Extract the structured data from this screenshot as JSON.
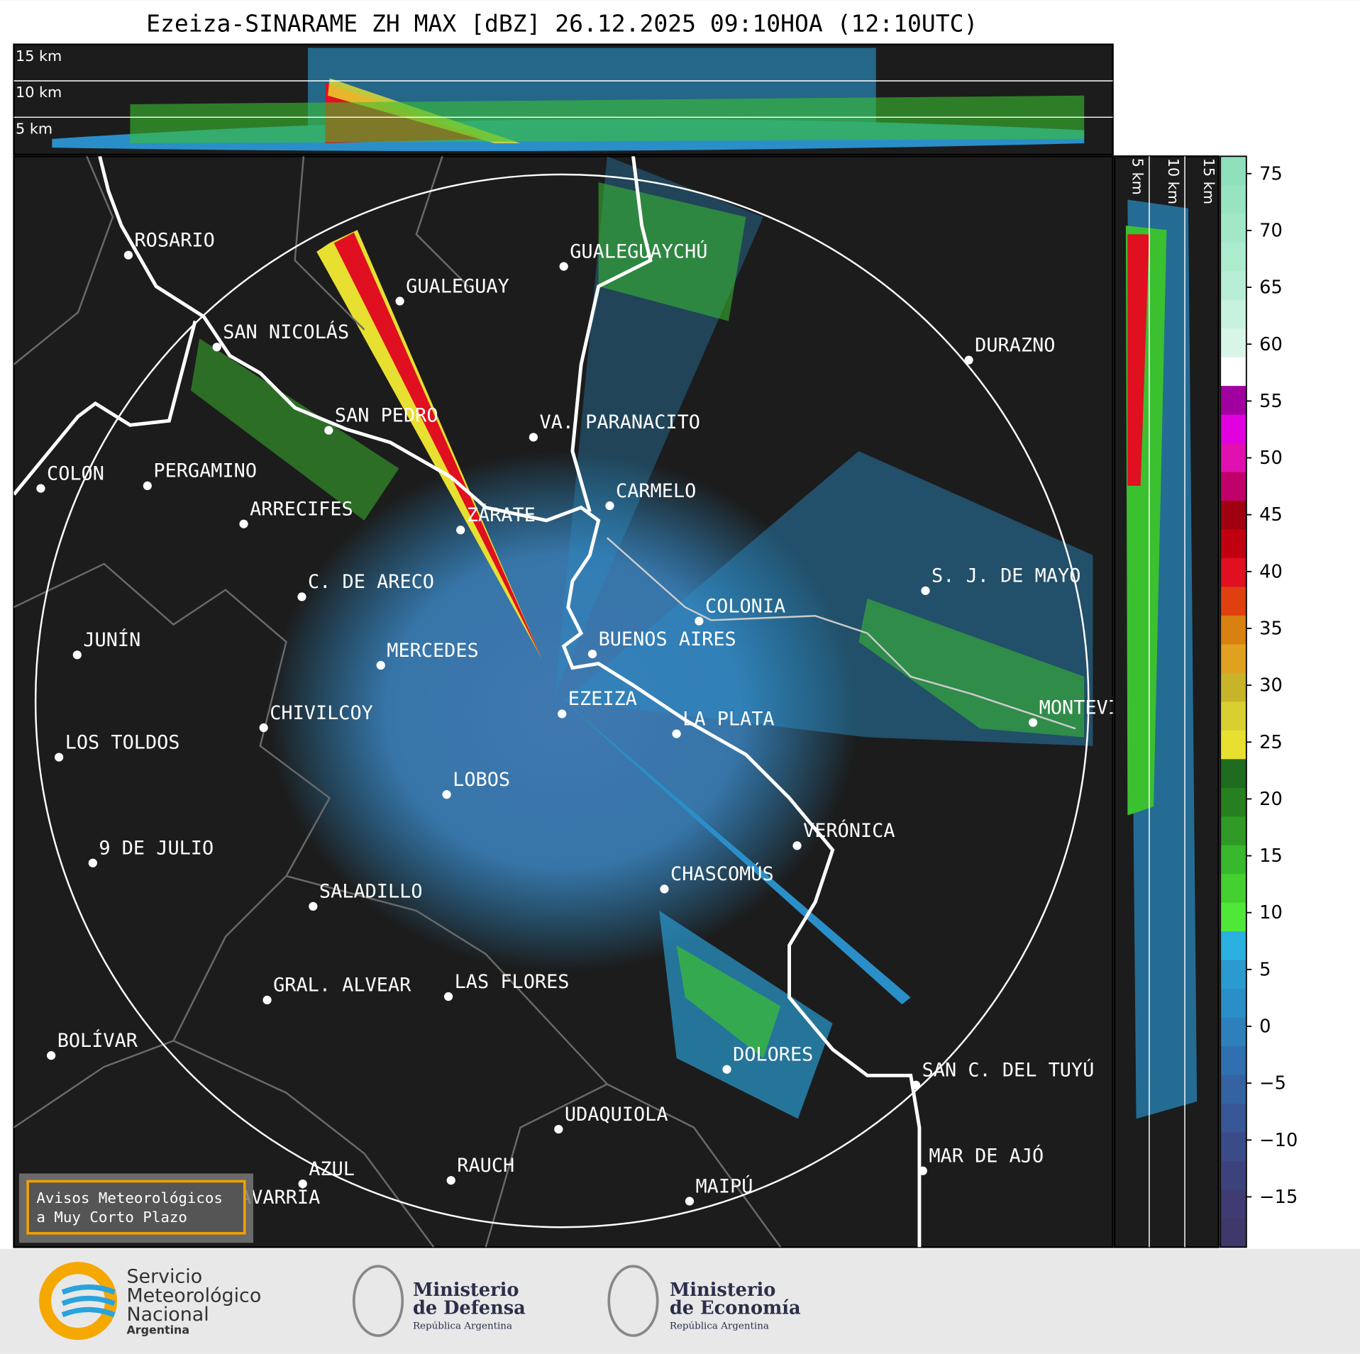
{
  "header": {
    "title": "Ezeiza-SINARAME ZH MAX [dBZ] 26.12.2025 09:10HOA (12:10UTC)"
  },
  "height_panel_top": {
    "labels": [
      "15 km",
      "10 km",
      "5 km"
    ]
  },
  "height_panel_right": {
    "labels": [
      "5 km",
      "10 km",
      "15 km"
    ]
  },
  "cities": [
    "ROSARIO",
    "GUALEGUAYCHÚ",
    "GUALEGUAY",
    "SAN NICOLÁS",
    "DURAZNO",
    "SAN PEDRO",
    "VA. PARANACITO",
    "COLON",
    "PERGAMINO",
    "CARMELO",
    "ARRECIFES",
    "ZÁRATE",
    "S. J. DE MAYO",
    "C. DE ARECO",
    "COLONIA",
    "BUENOS AIRES",
    "JUNÍN",
    "MERCEDES",
    "EZEIZA",
    "MONTEVIDEO",
    "CHIVILCOY",
    "LA PLATA",
    "LOS TOLDOS",
    "LOBOS",
    "VERÓNICA",
    "9 DE JULIO",
    "CHASCOMÚS",
    "SALADILLO",
    "GRAL. ALVEAR",
    "LAS FLORES",
    "BOLÍVAR",
    "DOLORES",
    "SAN C. DEL TUYÚ",
    "UDAQUIOLA",
    "RAUCH",
    "AZUL",
    "MAR DE AJÓ",
    "OLAVARRÍA",
    "MAIPÚ"
  ],
  "colorbar": {
    "ticks": [
      75,
      70,
      65,
      60,
      55,
      50,
      45,
      40,
      35,
      30,
      25,
      20,
      15,
      10,
      5,
      0,
      {
        "value": -5,
        "label": "−5"
      },
      {
        "value": -10,
        "label": "−10"
      },
      {
        "value": -15,
        "label": "−15"
      }
    ]
  },
  "notice": {
    "lines": [
      "Avisos Meteorológicos",
      "a Muy Corto Plazo"
    ]
  },
  "footer": {
    "smn": [
      "Servicio",
      "Meteorológico",
      "Nacional",
      "Argentina"
    ],
    "defensa": [
      "Ministerio",
      "de Defensa",
      "República Argentina"
    ],
    "economia": [
      "Ministerio",
      "de Economía",
      "República Argentina"
    ]
  }
}
